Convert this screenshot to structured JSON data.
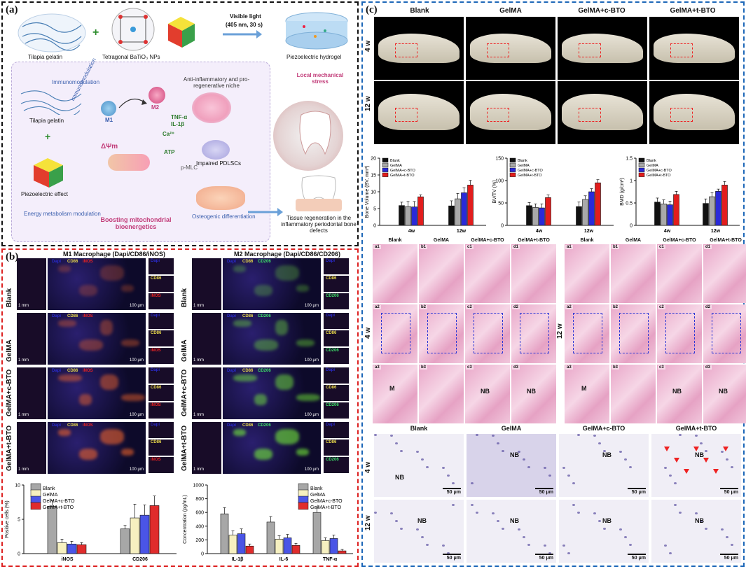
{
  "panel_a": {
    "label": "(a)",
    "tilapia_gelatin": "Tilapia gelatin",
    "batio3": "Tetragonal BaTiO₃ NPs",
    "visible_light": "Visible light",
    "light_params": "(405 nm, 30 s)",
    "piezo_hydrogel": "Piezoelectric hydrogel",
    "immunomodulation": "Immunomodulation",
    "immunomodulation_v": "Immunomodulation",
    "m1": "M1",
    "m2": "M2",
    "tnf": "TNF-α",
    "il1b": "IL-1β",
    "niche": "Anti-inflammatory and pro-regenerative niche",
    "local_stress": "Local mechanical stress",
    "tilapia_gelatin_2": "Tilapia gelatin",
    "plus1": "+",
    "plus2": "+",
    "piezo_effect": "Piezoelectric effect",
    "ca": "Ca²⁺",
    "atp": "ATP",
    "dpsi": "ΔΨm",
    "pmlc": "p-MLC",
    "impaired": "Impaired PDLSCs",
    "energy_mod": "Energy metabolism modulation",
    "boosting": "Boosting mitochondrial bioenergetics",
    "osteo": "Osteogenic differentiation",
    "tissue_regen": "Tissue regeneration in the inflammatory periodontal bone defects"
  },
  "panel_b": {
    "label": "(b)",
    "m1_title": "M1 Macrophage (Dapi/CD86/iNOS)",
    "m2_title": "M2 Macrophage (Dapi/CD86/CD206)",
    "groups": [
      "Blank",
      "GelMA",
      "GelMA+c-BTO",
      "GelMA+t-BTO"
    ],
    "scale_1mm": "1 mm",
    "scale_100um": "100 μm",
    "m1_tags": [
      "Dapi",
      "CD86",
      "iNOS"
    ],
    "m2_tags": [
      "Dapi",
      "CD86",
      "CD206"
    ]
  },
  "panel_c": {
    "label": "(c)",
    "ct_groups": [
      "Blank",
      "GelMA",
      "GelMA+c-BTO",
      "GelMA+t-BTO"
    ],
    "time_rows": [
      "4 w",
      "12 w"
    ],
    "he_tiles_4w": [
      "a1",
      "b1",
      "c1",
      "d1",
      "a2",
      "b2",
      "c2",
      "d2",
      "a3",
      "b3",
      "c3",
      "d3"
    ],
    "he_nb": "NB",
    "he_m": "M",
    "ihc_nb": "NB",
    "scale_50um": "50 μm"
  },
  "chart_data": [
    {
      "type": "bar",
      "id": "positive-cells",
      "ylabel": "Positive cells (%)",
      "categories": [
        "iNOS",
        "CD206"
      ],
      "series": [
        {
          "name": "Blank",
          "values": [
            6.9,
            3.6
          ],
          "errors": [
            0.8,
            0.5
          ]
        },
        {
          "name": "GelMA",
          "values": [
            1.6,
            5.2
          ],
          "errors": [
            0.5,
            2.0
          ]
        },
        {
          "name": "GelMA+c-BTO",
          "values": [
            1.4,
            5.6
          ],
          "errors": [
            0.4,
            1.5
          ]
        },
        {
          "name": "GelMA+t-BTO",
          "values": [
            1.3,
            7.0
          ],
          "errors": [
            0.3,
            1.4
          ]
        }
      ],
      "ylim": [
        0,
        10
      ],
      "yticks": [
        0,
        5,
        10
      ],
      "legend": "top-left"
    },
    {
      "type": "bar",
      "id": "concentration",
      "ylabel": "Concentration (pg/mL)",
      "categories": [
        "IL-1β",
        "IL-6",
        "TNF-α"
      ],
      "series": [
        {
          "name": "Blank",
          "values": [
            580,
            460,
            600
          ],
          "errors": [
            90,
            80,
            80
          ]
        },
        {
          "name": "GelMA",
          "values": [
            270,
            210,
            190
          ],
          "errors": [
            60,
            50,
            40
          ]
        },
        {
          "name": "GelMA+c-BTO",
          "values": [
            290,
            230,
            220
          ],
          "errors": [
            70,
            50,
            50
          ]
        },
        {
          "name": "GelMA+t-BTO",
          "values": [
            110,
            120,
            40
          ],
          "errors": [
            30,
            30,
            20
          ]
        }
      ],
      "ylim": [
        0,
        1000
      ],
      "yticks": [
        0,
        200,
        400,
        600,
        800,
        1000
      ],
      "legend": "top-right"
    },
    {
      "type": "bar",
      "id": "bv",
      "ylabel": "Bone Volume (BV, mm³)",
      "categories": [
        "4w",
        "12w"
      ],
      "series": [
        {
          "name": "Blank",
          "values": [
            5.9,
            5.8
          ],
          "errors": [
            1.0,
            1.5
          ]
        },
        {
          "name": "GelMA",
          "values": [
            5.6,
            7.9
          ],
          "errors": [
            1.5,
            1.6
          ]
        },
        {
          "name": "GelMA+c-BTO",
          "values": [
            5.5,
            9.7
          ],
          "errors": [
            1.6,
            1.5
          ]
        },
        {
          "name": "GelMA+t-BTO",
          "values": [
            8.5,
            12.0
          ],
          "errors": [
            0.6,
            1.4
          ]
        }
      ],
      "ylim": [
        0,
        20
      ],
      "yticks": [
        0,
        5,
        10,
        15,
        20
      ],
      "legend": "top-left"
    },
    {
      "type": "bar",
      "id": "bvtv",
      "ylabel": "BV/TV (%)",
      "categories": [
        "4w",
        "12w"
      ],
      "series": [
        {
          "name": "Blank",
          "values": [
            44,
            42
          ],
          "errors": [
            7,
            10
          ]
        },
        {
          "name": "GelMA",
          "values": [
            40,
            58
          ],
          "errors": [
            8,
            8
          ]
        },
        {
          "name": "GelMA+c-BTO",
          "values": [
            39,
            75
          ],
          "errors": [
            9,
            7
          ]
        },
        {
          "name": "GelMA+t-BTO",
          "values": [
            62,
            95
          ],
          "errors": [
            6,
            7
          ]
        }
      ],
      "ylim": [
        0,
        150
      ],
      "yticks": [
        0,
        50,
        100,
        150
      ],
      "legend": "top-left"
    },
    {
      "type": "bar",
      "id": "bmd",
      "ylabel": "BMD (g/cm³)",
      "categories": [
        "4w",
        "12w"
      ],
      "series": [
        {
          "name": "Blank",
          "values": [
            0.52,
            0.49
          ],
          "errors": [
            0.09,
            0.1
          ]
        },
        {
          "name": "GelMA",
          "values": [
            0.48,
            0.64
          ],
          "errors": [
            0.09,
            0.09
          ]
        },
        {
          "name": "GelMA+c-BTO",
          "values": [
            0.46,
            0.76
          ],
          "errors": [
            0.08,
            0.05
          ]
        },
        {
          "name": "GelMA+t-BTO",
          "values": [
            0.69,
            0.9
          ],
          "errors": [
            0.07,
            0.08
          ]
        }
      ],
      "ylim": [
        0,
        1.5
      ],
      "yticks": [
        0,
        0.5,
        1.0,
        1.5
      ],
      "legend": "top-left"
    }
  ],
  "colors": {
    "blank": "#a7a7a7",
    "gelma": "#f6f0c0",
    "cbto": "#4a55e6",
    "tbto": "#e02c2c",
    "blank_c": "#111111",
    "gelma_c": "#a9a9a9",
    "cbto_c": "#2a2ad9",
    "tbto_c": "#e21d1d"
  }
}
